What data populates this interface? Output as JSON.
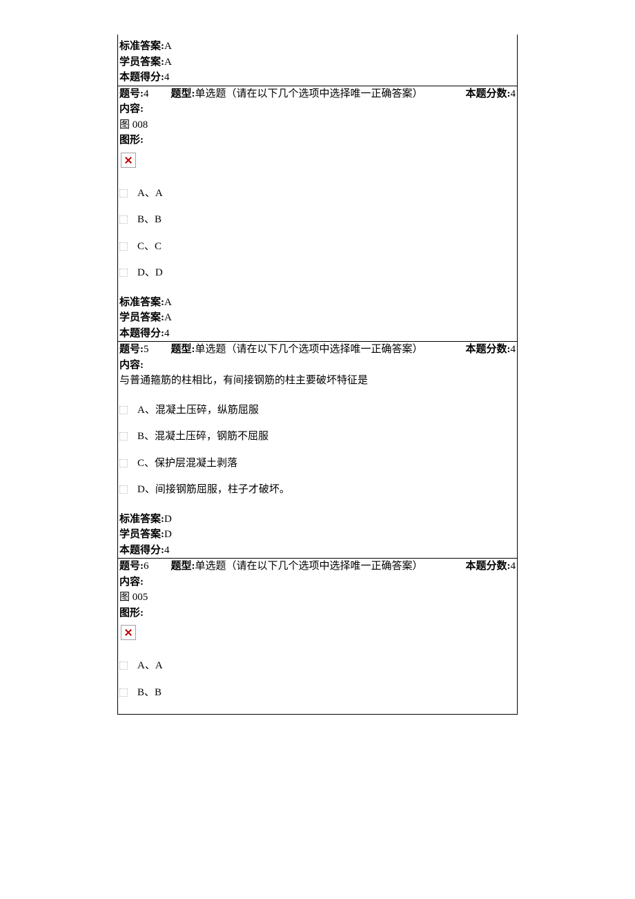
{
  "labels": {
    "std_answer": "标准答案:",
    "stu_answer": "学员答案:",
    "score_got": "本题得分:",
    "qno": "题号:",
    "qtype": "题型:",
    "qtype_val": "单选题（请在以下几个选项中选择唯一正确答案）",
    "qscore": "本题分数:",
    "content": "内容:",
    "figure": "图形:"
  },
  "prev": {
    "std_answer": "A",
    "stu_answer": "A",
    "score_got": "4"
  },
  "q4": {
    "no": "4",
    "score": "4",
    "content_text": "图 008",
    "options": [
      {
        "label": "A、A"
      },
      {
        "label": "B、B"
      },
      {
        "label": "C、C"
      },
      {
        "label": "D、D"
      }
    ],
    "std_answer": "A",
    "stu_answer": "A",
    "score_got": "4"
  },
  "q5": {
    "no": "5",
    "score": "4",
    "content_text": "与普通箍筋的柱相比，有间接钢筋的柱主要破坏特征是",
    "options": [
      {
        "label": "A、混凝土压碎，纵筋屈服"
      },
      {
        "label": "B、混凝土压碎，钢筋不屈服"
      },
      {
        "label": "C、保护层混凝土剥落"
      },
      {
        "label": "D、间接钢筋屈服，柱子才破坏。"
      }
    ],
    "std_answer": "D",
    "stu_answer": "D",
    "score_got": "4"
  },
  "q6": {
    "no": "6",
    "score": "4",
    "content_text": "图 005",
    "options": [
      {
        "label": "A、A"
      },
      {
        "label": "B、B"
      }
    ]
  }
}
